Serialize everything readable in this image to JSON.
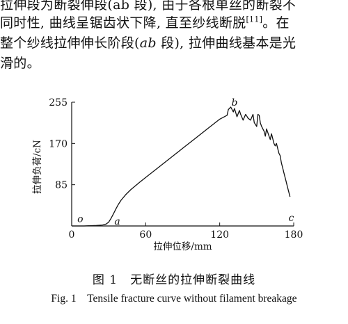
{
  "paragraph": {
    "line1": "拉伸段为断裂伸段(ab 段), 由于各根单丝的断裂不",
    "line2_text": "同时性, 曲线呈锯齿状下降, 直至纱线断脱",
    "line2_ref": "[11]",
    "line2_tail": "。在",
    "line3_pre": "整个纱线拉伸伸长阶段(",
    "line3_ab": "ab",
    "line3_post": " 段), 拉伸曲线基本是光",
    "line4": "滑的。"
  },
  "figure": {
    "caption_cn": "图 1　无断丝的拉伸断裂曲线",
    "caption_en": "Fig. 1　Tensile fracture curve without filament breakage"
  },
  "chart_data": {
    "type": "line",
    "xlabel": "拉伸位移/mm",
    "ylabel": "拉伸负荷/cN",
    "xlim": [
      0,
      180
    ],
    "ylim": [
      0,
      255
    ],
    "xticks": [
      "0",
      "60",
      "120",
      "180"
    ],
    "yticks": [
      "85",
      "170",
      "255"
    ],
    "grid": false,
    "annotations": [
      {
        "label": "o",
        "x": 7,
        "y": 8
      },
      {
        "label": "a",
        "x": 37,
        "y": 3
      },
      {
        "label": "b",
        "x": 132,
        "y": 248
      },
      {
        "label": "c",
        "x": 178,
        "y": 10
      }
    ],
    "series": [
      {
        "x": [
          0,
          10,
          20,
          25,
          28,
          30,
          32,
          34,
          36,
          38,
          40,
          44,
          48,
          55,
          60,
          70,
          80,
          90,
          100,
          110,
          120,
          126,
          127,
          129,
          131,
          132,
          134,
          136,
          137,
          139,
          141,
          142,
          143,
          145,
          147,
          148,
          150,
          151,
          152,
          153,
          154,
          156,
          157,
          158,
          160,
          161,
          162,
          164,
          165,
          166,
          168,
          169,
          170,
          171,
          172,
          173,
          174,
          175,
          176,
          177
        ],
        "y": [
          0,
          0,
          1,
          2,
          4,
          8,
          16,
          26,
          36,
          45,
          53,
          65,
          75,
          90,
          100,
          120,
          140,
          160,
          180,
          200,
          220,
          228,
          240,
          245,
          235,
          242,
          225,
          238,
          230,
          218,
          230,
          226,
          222,
          218,
          230,
          213,
          205,
          230,
          228,
          212,
          205,
          195,
          185,
          200,
          185,
          178,
          190,
          170,
          165,
          170,
          150,
          145,
          130,
          120,
          110,
          100,
          90,
          80,
          70,
          60
        ]
      }
    ]
  }
}
